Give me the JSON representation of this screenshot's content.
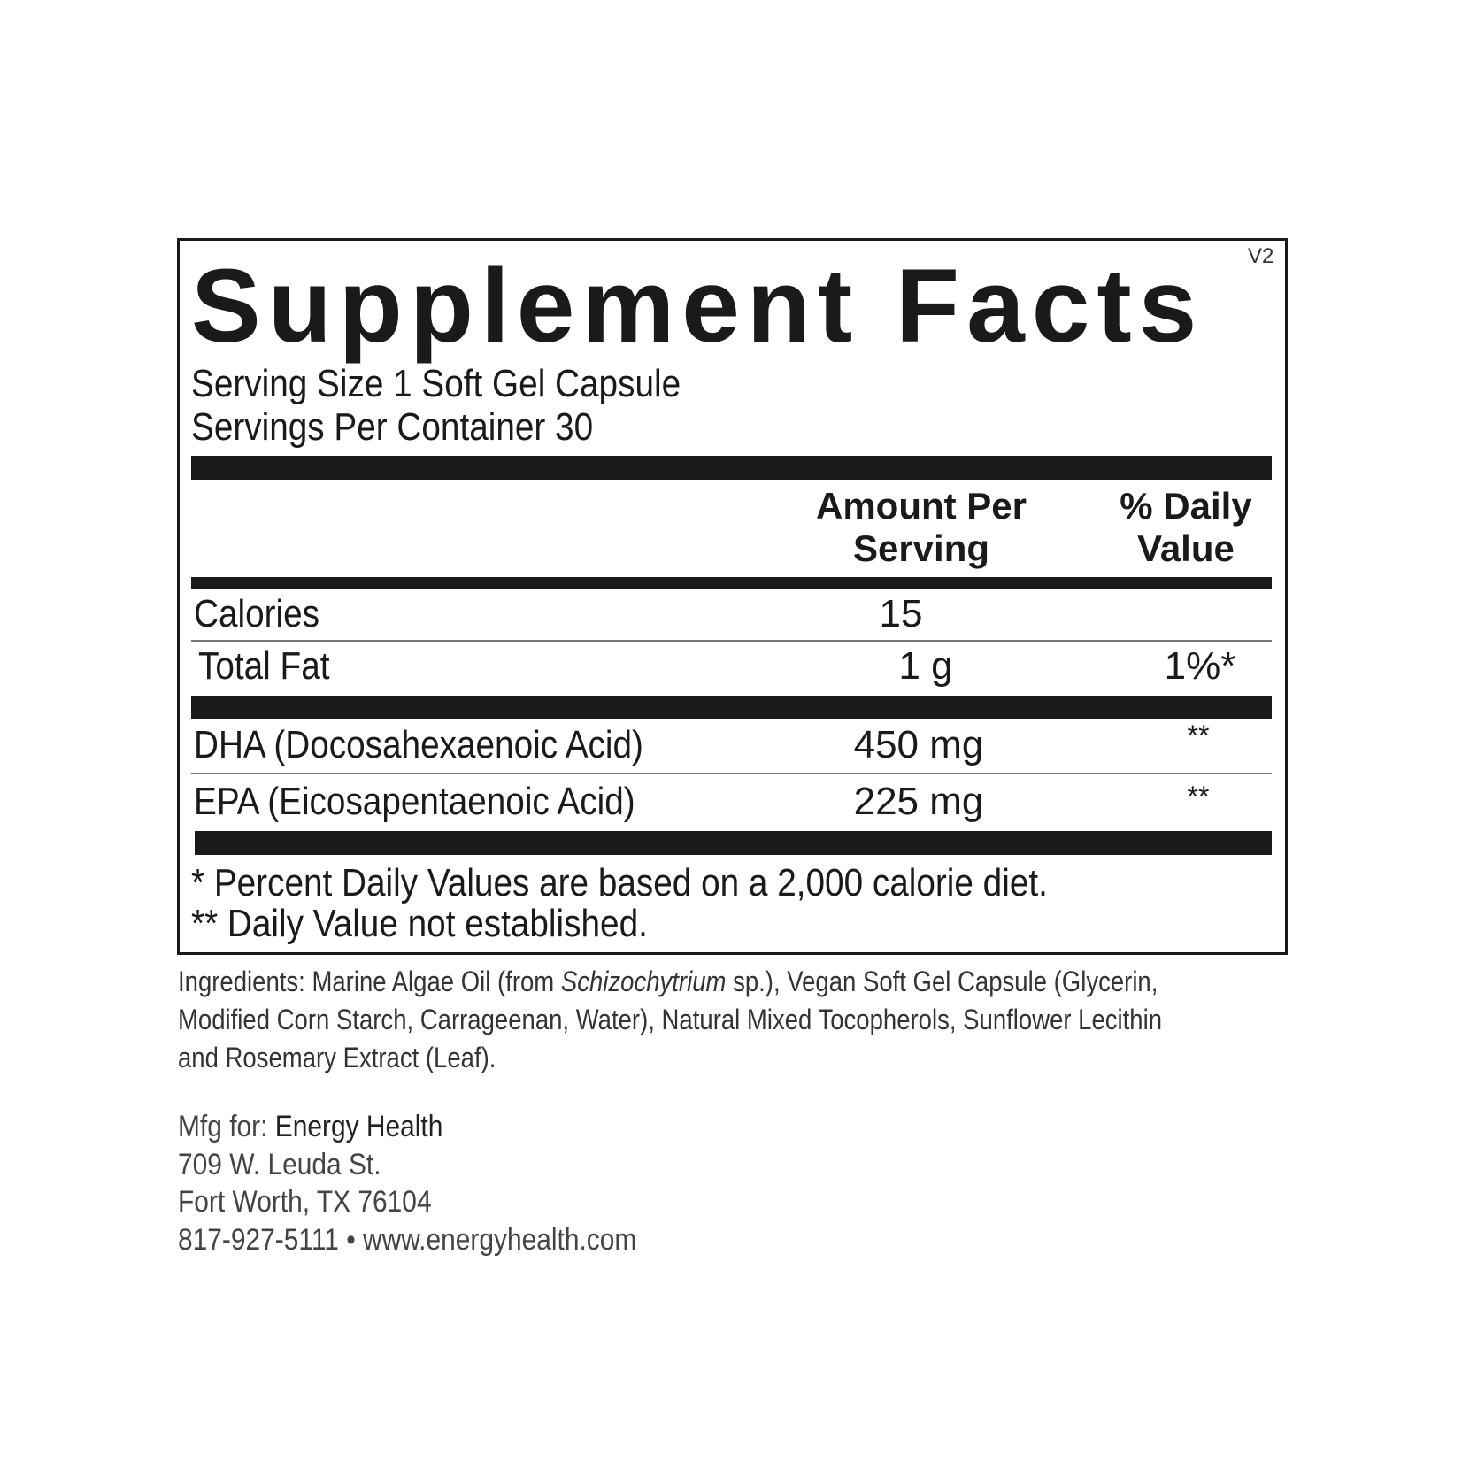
{
  "label": {
    "title": "Supplement Facts",
    "version": "V2",
    "serving_size": "Serving Size 1 Soft Gel Capsule",
    "servings_per_container": "Servings Per Container 30",
    "header": {
      "amount_line1": "Amount Per",
      "amount_line2": "Serving",
      "dv_line1": "% Daily",
      "dv_line2": "Value"
    },
    "rows": [
      {
        "name": "Calories",
        "amount": "15",
        "dv": ""
      },
      {
        "name": "Total Fat",
        "amount": "1 g",
        "dv": "1%*"
      },
      {
        "name": "DHA (Docosahexaenoic Acid)",
        "amount": "450 mg",
        "dv": "**"
      },
      {
        "name": "EPA (Eicosapentaenoic Acid)",
        "amount": "225 mg",
        "dv": "**"
      }
    ],
    "footnote1": "* Percent Daily Values are based on a 2,000 calorie diet.",
    "footnote2": "** Daily Value not established."
  },
  "ingredients": {
    "line1_a": "Ingredients: Marine Algae Oil (from ",
    "line1_italic": "Schizochytrium",
    "line1_b": " sp.), Vegan Soft Gel Capsule (Glycerin,",
    "line2": "Modified Corn Starch, Carrageenan, Water), Natural Mixed Tocopherols, Sunflower Lecithin",
    "line3": "and Rosemary Extract (Leaf)."
  },
  "manufacturer": {
    "prefix": "Mfg for: ",
    "name": "Energy Health",
    "street": "709 W. Leuda St.",
    "city": "Fort Worth, TX 76104",
    "phone": "817-927-5111",
    "separator": " • ",
    "website": "www.energyhealth.com"
  }
}
